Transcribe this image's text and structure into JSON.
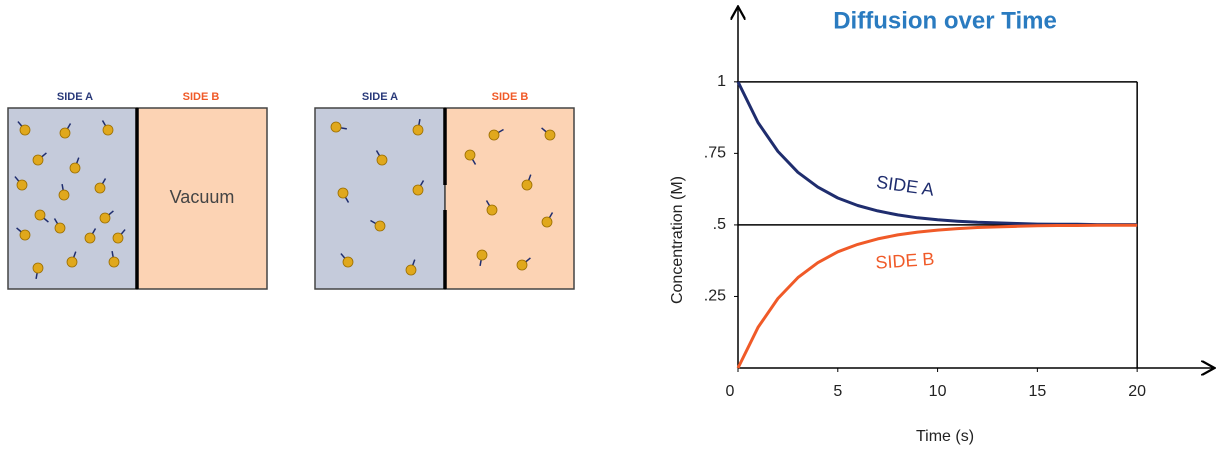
{
  "diagram": {
    "before": {
      "side_a": "SIDE  A",
      "side_b": "SIDE  B",
      "vacuum": "Vacuum"
    },
    "after": {
      "side_a": "SIDE  A",
      "side_b": "SIDE  B"
    }
  },
  "chart_data": {
    "type": "line",
    "title": "Diffusion over Time",
    "x_label": "Time (s)",
    "y_label": "Concentration (M)",
    "x": [
      0,
      1,
      2,
      3,
      4,
      5,
      6,
      7,
      8,
      9,
      10,
      11,
      12,
      13,
      14,
      15,
      16,
      17,
      18,
      19,
      20
    ],
    "series": [
      {
        "name": "SIDE  A",
        "color": "#1f2d6e",
        "values": [
          1,
          0.858,
          0.757,
          0.684,
          0.632,
          0.594,
          0.568,
          0.549,
          0.535,
          0.525,
          0.518,
          0.513,
          0.509,
          0.507,
          0.505,
          0.503,
          0.502,
          0.502,
          0.501,
          0.501,
          0.501
        ]
      },
      {
        "name": "SIDE  B",
        "color": "#f05a28",
        "values": [
          0,
          0.142,
          0.243,
          0.316,
          0.368,
          0.406,
          0.432,
          0.451,
          0.465,
          0.475,
          0.482,
          0.487,
          0.491,
          0.493,
          0.495,
          0.497,
          0.498,
          0.498,
          0.499,
          0.499,
          0.499
        ]
      }
    ],
    "xlim": [
      0,
      23.7
    ],
    "ylim": [
      0,
      1.23
    ],
    "xticks": [
      0,
      5,
      10,
      15,
      20
    ],
    "yticks": [
      {
        "value": 0.25,
        "label": ".25"
      },
      {
        "value": 0.5,
        "label": ".5"
      },
      {
        "value": 0.75,
        "label": ".75"
      },
      1
    ]
  }
}
